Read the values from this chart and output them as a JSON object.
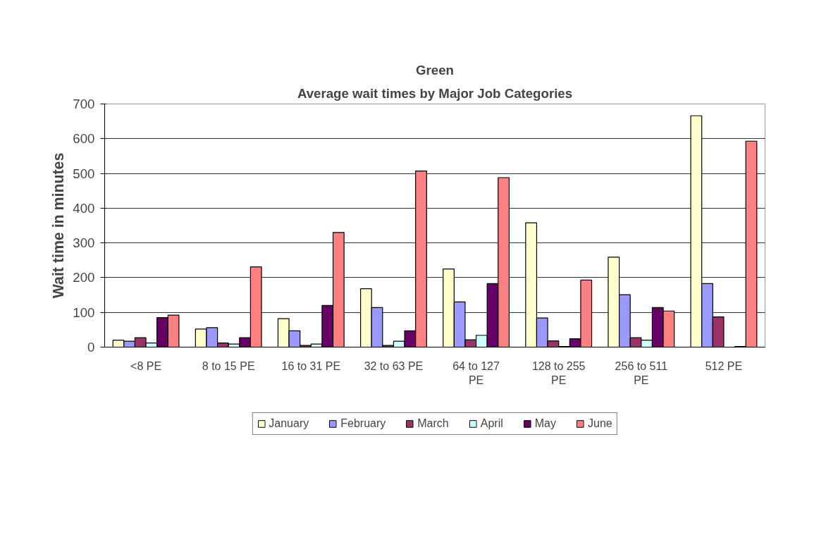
{
  "chart_data": {
    "type": "bar",
    "title": "Green",
    "subtitle": "Average wait times by Major Job Categories",
    "ylabel": "Wait time in minutes",
    "categories": [
      "<8 PE",
      "8 to 15 PE",
      "16 to 31 PE",
      "32 to 63 PE",
      "64 to 127 PE",
      "128 to 255 PE",
      "256 to 511 PE",
      "512 PE"
    ],
    "series": [
      {
        "name": "January",
        "color": "#ffffcc",
        "values": [
          20,
          52,
          82,
          168,
          225,
          358,
          259,
          666
        ]
      },
      {
        "name": "February",
        "color": "#9999ff",
        "values": [
          17,
          56,
          47,
          114,
          130,
          84,
          151,
          183
        ]
      },
      {
        "name": "March",
        "color": "#993366",
        "values": [
          27,
          12,
          5,
          5,
          21,
          18,
          27,
          87
        ]
      },
      {
        "name": "April",
        "color": "#ccffff",
        "values": [
          12,
          9,
          9,
          17,
          34,
          2,
          20,
          null
        ]
      },
      {
        "name": "May",
        "color": "#660066",
        "values": [
          85,
          27,
          120,
          47,
          183,
          24,
          114,
          2
        ]
      },
      {
        "name": "June",
        "color": "#ff8080",
        "values": [
          92,
          231,
          330,
          507,
          488,
          193,
          104,
          593
        ]
      }
    ],
    "ylim": [
      0,
      700
    ],
    "yticks": [
      0,
      100,
      200,
      300,
      400,
      500,
      600,
      700
    ],
    "grid": "y",
    "legend": "bottom"
  }
}
